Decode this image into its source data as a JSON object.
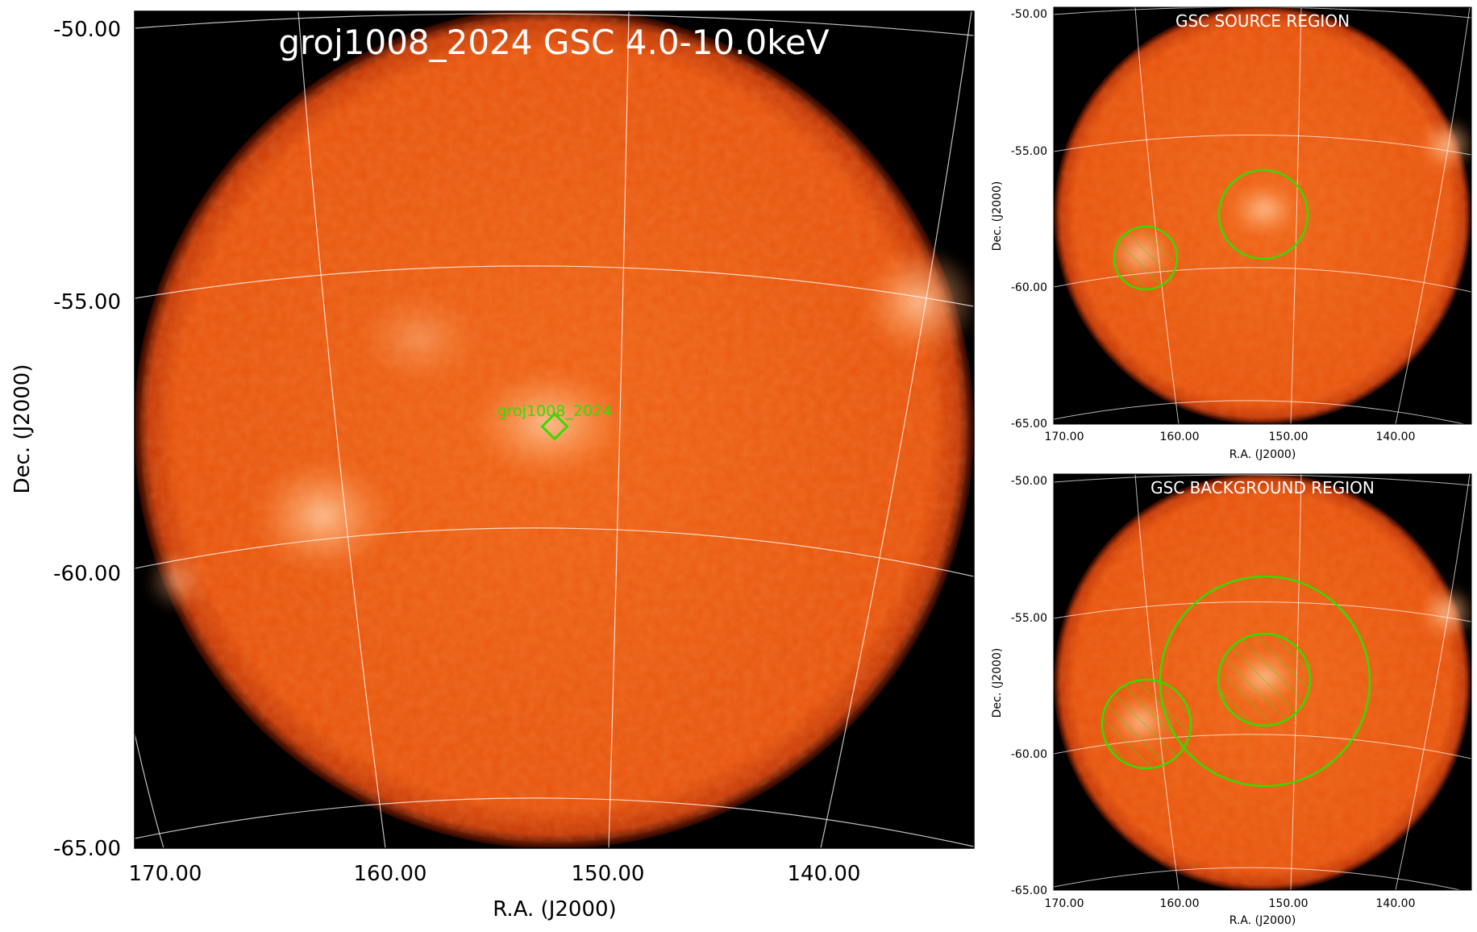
{
  "main": {
    "title": "groj1008_2024 GSC 4.0-10.0keV",
    "source_label": "groj1008_2024",
    "ylabel": "Dec. (J2000)",
    "xlabel": "R.A. (J2000)",
    "dec_ticks": [
      "-50.00",
      "-55.00",
      "-60.00",
      "-65.00"
    ],
    "ra_ticks": [
      "170.00",
      "160.00",
      "150.00",
      "140.00"
    ]
  },
  "source_panel": {
    "title": "GSC SOURCE REGION",
    "ylabel": "Dec. (J2000)",
    "xlabel": "R.A. (J2000)",
    "dec_ticks": [
      "-50.00",
      "-55.00",
      "-60.00",
      "-65.00"
    ],
    "ra_ticks": [
      "170.00",
      "160.00",
      "150.00",
      "140.00"
    ]
  },
  "background_panel": {
    "title": "GSC BACKGROUND REGION",
    "ylabel": "Dec. (J2000)",
    "xlabel": "R.A. (J2000)",
    "dec_ticks": [
      "-50.00",
      "-55.00",
      "-60.00",
      "-65.00"
    ],
    "ra_ticks": [
      "170.00",
      "160.00",
      "150.00",
      "140.00"
    ]
  },
  "colors": {
    "sky": "#ea5a12",
    "region": "#33dd00",
    "grid": "#ffffff",
    "background": "#000000"
  }
}
